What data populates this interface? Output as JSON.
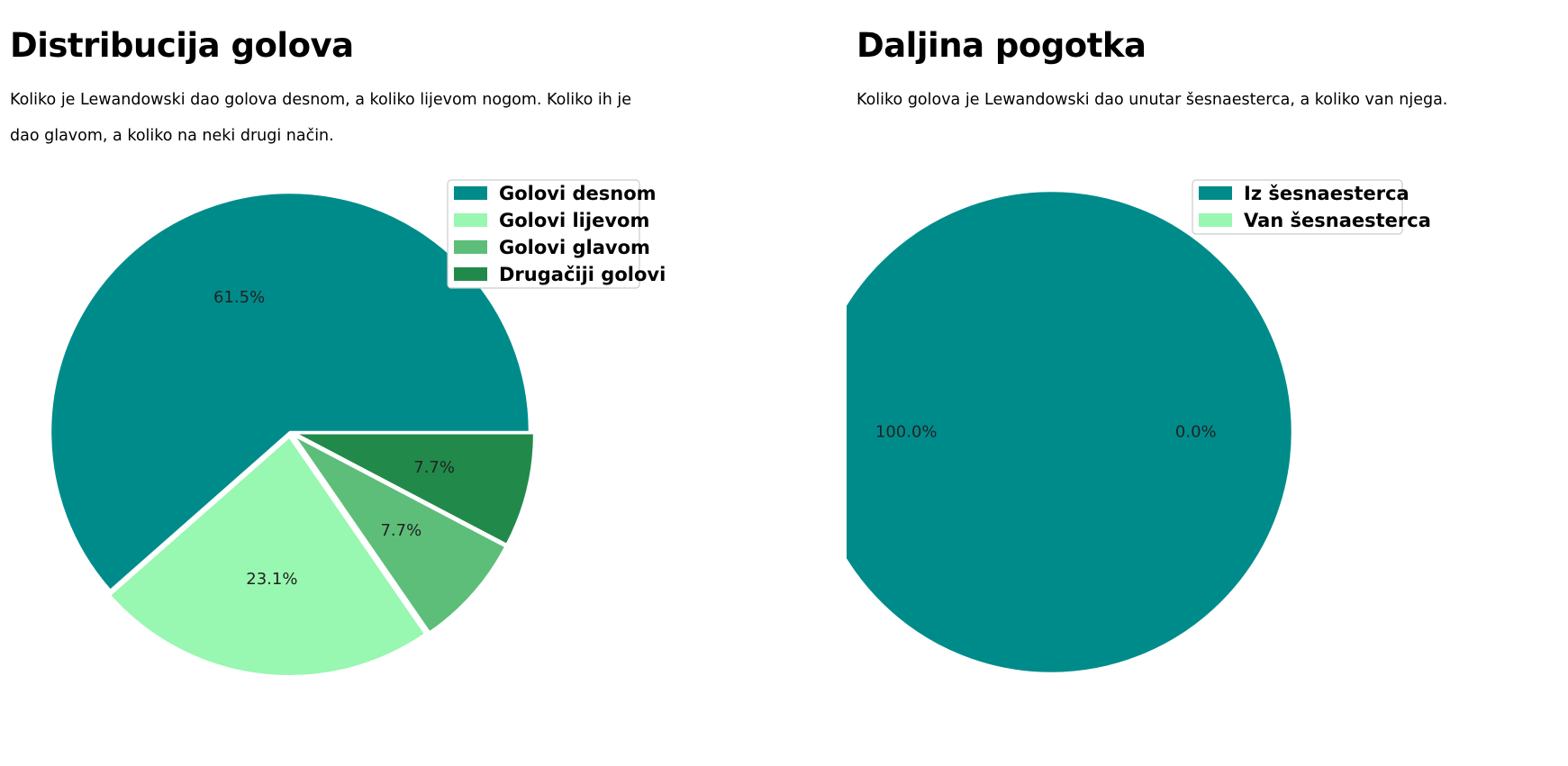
{
  "sections": [
    {
      "title": "Distribucija golova",
      "description": "Koliko je Lewandowski dao golova desnom, a koliko lijevom nogom. Koliko ih je dao glavom, a koliko na neki drugi način."
    },
    {
      "title": "Daljina pogotka",
      "description": "Koliko golova je Lewandowski dao unutar šesnaesterca, a koliko van njega."
    }
  ],
  "chart_data": [
    {
      "type": "pie",
      "labels": [
        "Golovi desnom",
        "Golovi lijevom",
        "Golovi glavom",
        "Drugačiji golovi"
      ],
      "values": [
        61.5,
        23.1,
        7.7,
        7.7
      ],
      "value_labels": [
        "61.5%",
        "23.1%",
        "7.7%",
        "7.7%"
      ],
      "colors": [
        "#008b8b",
        "#98f7b1",
        "#5dbe7a",
        "#218a4b"
      ],
      "explode": [
        0,
        0.02,
        0.02,
        0.02
      ],
      "legend_position": "top-right"
    },
    {
      "type": "pie",
      "labels": [
        "Iz šesnaesterca",
        "Van šesnaesterca"
      ],
      "values": [
        100.0,
        0.0
      ],
      "value_labels": [
        "100.0%",
        "0.0%"
      ],
      "colors": [
        "#008b8b",
        "#98f7b1"
      ],
      "legend_position": "top-right"
    }
  ]
}
